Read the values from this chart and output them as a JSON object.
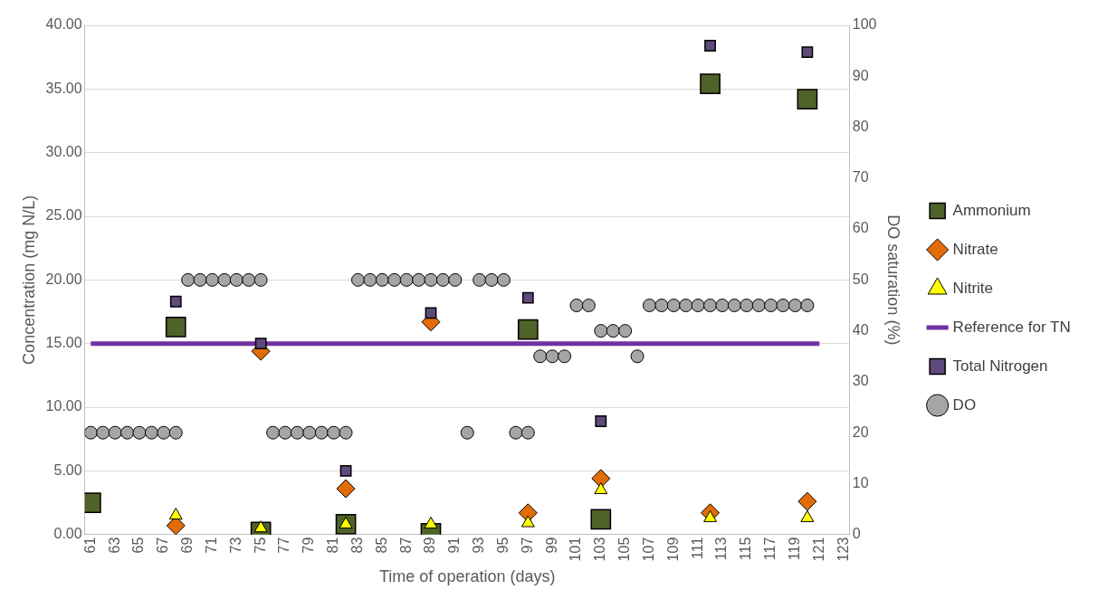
{
  "chart_data": {
    "type": "scatter",
    "xlabel": "Time of operation (days)",
    "ylabel": "Concentration (mg N/L)",
    "y2label": "DO saturation (%)",
    "xlim": [
      60.5,
      123.5
    ],
    "xticks": [
      61,
      63,
      65,
      67,
      69,
      71,
      73,
      75,
      77,
      79,
      81,
      83,
      85,
      87,
      89,
      91,
      93,
      95,
      97,
      99,
      101,
      103,
      105,
      107,
      109,
      111,
      113,
      115,
      117,
      119,
      121,
      123
    ],
    "ylim": [
      0,
      40
    ],
    "yticks": [
      {
        "value": 0,
        "label": "0.00"
      },
      {
        "value": 5,
        "label": "5.00"
      },
      {
        "value": 10,
        "label": "10.00"
      },
      {
        "value": 15,
        "label": "15.00"
      },
      {
        "value": 20,
        "label": "20.00"
      },
      {
        "value": 25,
        "label": "25.00"
      },
      {
        "value": 30,
        "label": "30.00"
      },
      {
        "value": 35,
        "label": "35.00"
      },
      {
        "value": 40,
        "label": "40.00"
      }
    ],
    "y2lim": [
      0,
      100
    ],
    "y2ticks": [
      0,
      10,
      20,
      30,
      40,
      50,
      60,
      70,
      80,
      90,
      100
    ],
    "grid": "y",
    "legend": "right",
    "series": [
      {
        "name": "Ammonium",
        "color": "#4f6228",
        "marker": "square",
        "x": [
          61,
          68,
          75,
          82,
          89,
          97,
          103,
          112,
          120
        ],
        "values": [
          2.5,
          16.3,
          0.2,
          0.8,
          0.1,
          16.1,
          1.2,
          35.4,
          34.2
        ]
      },
      {
        "name": "Nitrate",
        "color": "#e36c09",
        "marker": "diamond",
        "x": [
          68,
          75,
          82,
          89,
          97,
          103,
          112,
          120
        ],
        "values": [
          0.7,
          14.4,
          3.6,
          16.7,
          1.7,
          4.4,
          1.7,
          2.6
        ]
      },
      {
        "name": "Nitrite",
        "color": "#ffff00",
        "marker": "triangle",
        "x": [
          68,
          75,
          82,
          89,
          97,
          103,
          112,
          120
        ],
        "values": [
          1.5,
          0.5,
          0.8,
          0.8,
          0.9,
          3.5,
          1.3,
          1.3
        ]
      },
      {
        "name": "Reference for TN",
        "type": "line",
        "color": "#7030a0",
        "marker": "none",
        "x": [
          61,
          121
        ],
        "values": [
          15,
          15
        ]
      },
      {
        "name": "Total Nitrogen",
        "color": "#604a7b",
        "marker": "square",
        "x": [
          68,
          75,
          82,
          89,
          97,
          103,
          112,
          120
        ],
        "values": [
          18.3,
          15.0,
          5.0,
          17.4,
          18.6,
          8.9,
          38.4,
          37.9
        ]
      },
      {
        "name": "DO",
        "color": "#a5a5a5",
        "marker": "circle",
        "axis": "y2",
        "x": [
          61,
          62,
          63,
          64,
          65,
          66,
          67,
          68,
          69,
          70,
          71,
          72,
          73,
          74,
          75,
          76,
          77,
          78,
          79,
          80,
          81,
          82,
          83,
          84,
          85,
          86,
          87,
          88,
          89,
          90,
          91,
          92,
          93,
          94,
          95,
          96,
          97,
          98,
          99,
          100,
          101,
          102,
          103,
          104,
          105,
          106,
          107,
          108,
          109,
          110,
          111,
          112,
          113,
          114,
          115,
          116,
          117,
          118,
          119,
          120
        ],
        "values": [
          20,
          20,
          20,
          20,
          20,
          20,
          20,
          20,
          50,
          50,
          50,
          50,
          50,
          50,
          50,
          20,
          20,
          20,
          20,
          20,
          20,
          20,
          50,
          50,
          50,
          50,
          50,
          50,
          50,
          50,
          50,
          20,
          50,
          50,
          50,
          20,
          20,
          35,
          35,
          35,
          45,
          45,
          40,
          40,
          40,
          35,
          45,
          45,
          45,
          45,
          45,
          45,
          45,
          45,
          45,
          45,
          45,
          45,
          45,
          45
        ]
      }
    ]
  }
}
